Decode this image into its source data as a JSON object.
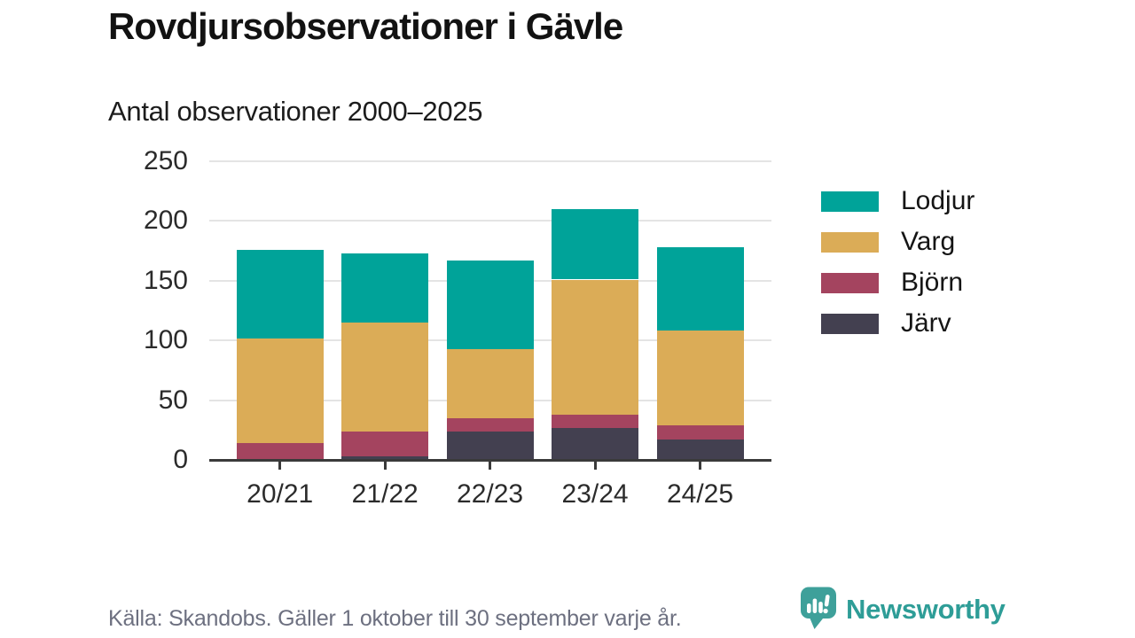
{
  "header": {
    "title": "Rovdjursobservationer i Gävle",
    "subtitle": "Antal observationer 2000–2025"
  },
  "chart_data": {
    "type": "bar",
    "stacked": true,
    "title": "Rovdjursobservationer i Gävle",
    "subtitle": "Antal observationer 2000–2025",
    "categories": [
      "20/21",
      "21/22",
      "22/23",
      "23/24",
      "24/25"
    ],
    "series": [
      {
        "name": "Järv",
        "color": "#434050",
        "values": [
          0,
          3,
          24,
          27,
          17
        ]
      },
      {
        "name": "Björn",
        "color": "#A4445F",
        "values": [
          14,
          21,
          11,
          11,
          12
        ]
      },
      {
        "name": "Varg",
        "color": "#DBAC57",
        "values": [
          88,
          91,
          58,
          113,
          79
        ]
      },
      {
        "name": "Lodjur",
        "color": "#00A399",
        "values": [
          74,
          58,
          74,
          59,
          70
        ]
      }
    ],
    "totals": [
      176,
      173,
      167,
      210,
      178
    ],
    "ylim": [
      0,
      250
    ],
    "yticks": [
      0,
      50,
      100,
      150,
      200,
      250
    ],
    "grid": true,
    "legend_position": "right",
    "legend_order": [
      "Lodjur",
      "Varg",
      "Björn",
      "Järv"
    ],
    "axis_color": "#3a3a3a",
    "gridline_color": "#e4e4e4"
  },
  "footer": {
    "source": "Källa: Skandobs. Gäller 1 oktober till 30 september varje år.",
    "brand": "Newsworthy",
    "brand_color": "#2E9D97",
    "logo_color": "#3EA09A"
  }
}
